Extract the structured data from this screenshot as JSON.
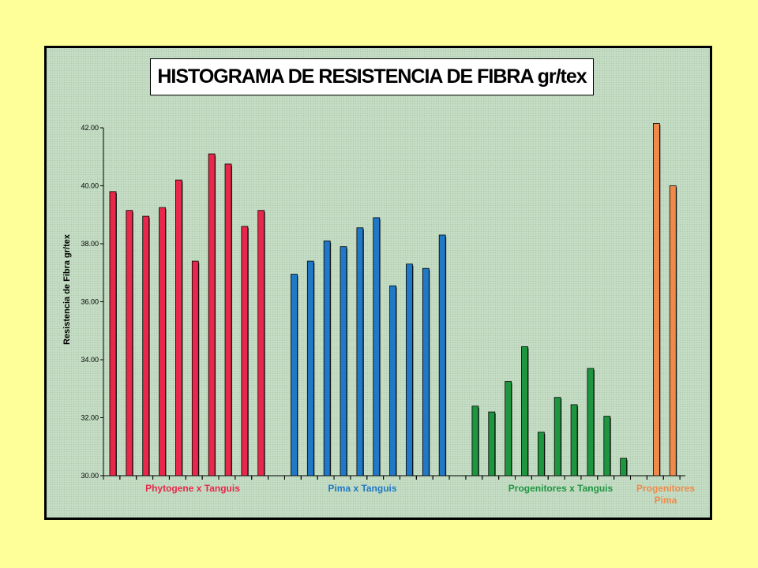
{
  "chart_data": {
    "type": "bar",
    "title": "HISTOGRAMA DE RESISTENCIA DE FIBRA gr/tex",
    "xlabel": "",
    "ylabel": "Resistencia de Fibra gr/tex",
    "ylim": [
      30,
      42
    ],
    "yticks": [
      "30.00",
      "32.00",
      "34.00",
      "36.00",
      "38.00",
      "40.00",
      "42.00"
    ],
    "grid": false,
    "series": [
      {
        "name": "Phytogene x Tanguis",
        "color": "#e8274a",
        "values": [
          39.8,
          39.15,
          38.95,
          39.25,
          40.2,
          37.4,
          41.1,
          40.75,
          38.6,
          39.15
        ]
      },
      {
        "name": "Pima x Tanguis",
        "color": "#1f78c8",
        "values": [
          36.95,
          37.4,
          38.1,
          37.9,
          38.55,
          38.9,
          36.55,
          37.3,
          37.15,
          38.3
        ]
      },
      {
        "name": "Progenitores x Tanguis",
        "color": "#1e9640",
        "values": [
          32.4,
          32.2,
          33.25,
          34.45,
          31.5,
          32.7,
          32.45,
          33.7,
          32.05,
          30.6
        ]
      },
      {
        "name": "Progenitores\nPima",
        "color": "#f08a4a",
        "values": [
          42.15,
          40.0
        ]
      }
    ]
  }
}
